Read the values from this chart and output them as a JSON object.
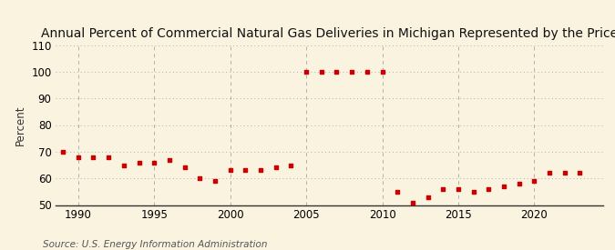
{
  "title": "Annual Percent of Commercial Natural Gas Deliveries in Michigan Represented by the Price",
  "ylabel": "Percent",
  "source": "Source: U.S. Energy Information Administration",
  "background_color": "#faf3e0",
  "plot_bg_color": "#faf3e0",
  "marker_color": "#cc0000",
  "grid_color": "#b0b0b0",
  "years": [
    1989,
    1990,
    1991,
    1992,
    1993,
    1994,
    1995,
    1996,
    1997,
    1998,
    1999,
    2000,
    2001,
    2002,
    2003,
    2004,
    2005,
    2006,
    2007,
    2008,
    2009,
    2010,
    2011,
    2012,
    2013,
    2014,
    2015,
    2016,
    2017,
    2018,
    2019,
    2020,
    2021,
    2022,
    2023
  ],
  "values": [
    70,
    68,
    68,
    68,
    65,
    66,
    66,
    67,
    64,
    60,
    59,
    63,
    63,
    63,
    64,
    65,
    100,
    100,
    100,
    100,
    100,
    100,
    55,
    51,
    53,
    56,
    56,
    55,
    56,
    57,
    58,
    59,
    62,
    62,
    62
  ],
  "xlim": [
    1988.5,
    2024.5
  ],
  "ylim": [
    50,
    110
  ],
  "yticks": [
    50,
    60,
    70,
    80,
    90,
    100,
    110
  ],
  "xticks": [
    1990,
    1995,
    2000,
    2005,
    2010,
    2015,
    2020
  ],
  "vgrid_years": [
    1990,
    1995,
    2000,
    2005,
    2010,
    2015,
    2020
  ],
  "title_fontsize": 10,
  "label_fontsize": 8.5,
  "tick_fontsize": 8.5,
  "source_fontsize": 7.5
}
